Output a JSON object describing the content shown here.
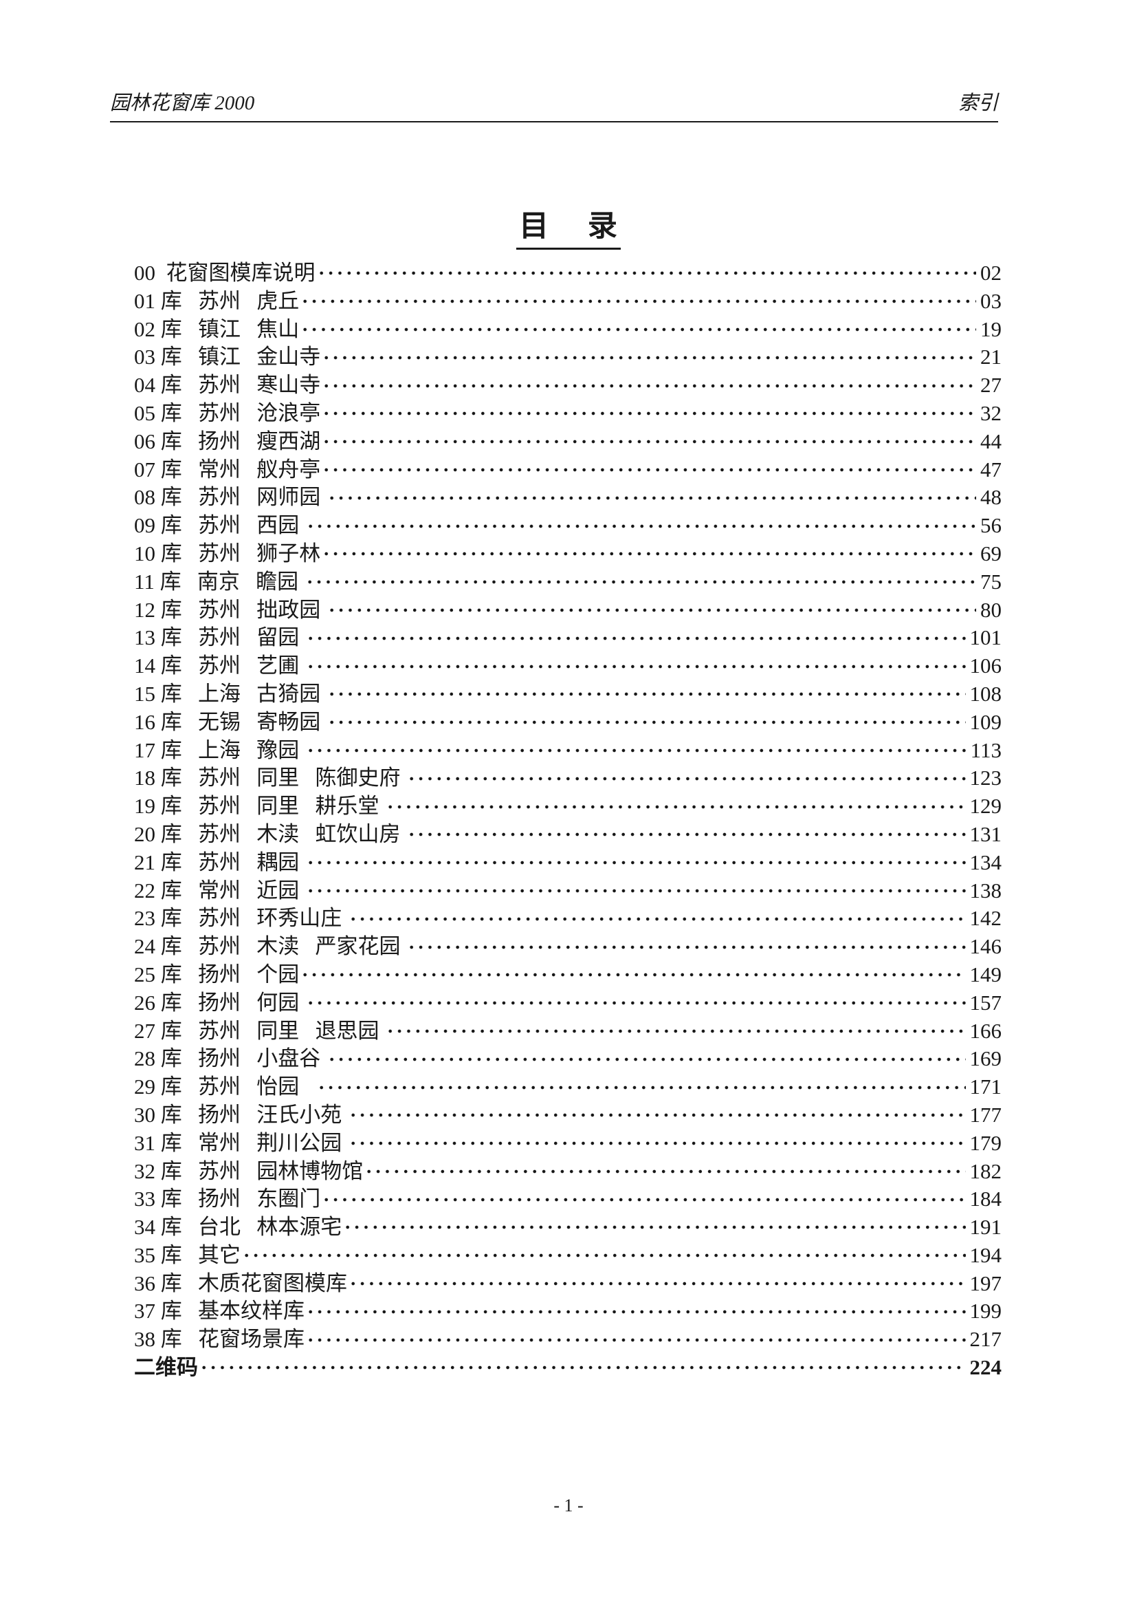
{
  "header": {
    "left": "园林花窗库 2000",
    "right": "索引"
  },
  "title": "目　 录",
  "toc": [
    {
      "label": "00  花窗图模库说明",
      "page": "02",
      "bold": false
    },
    {
      "label": "01 库   苏州   虎丘",
      "page": "03",
      "bold": false
    },
    {
      "label": "02 库   镇江   焦山",
      "page": "19",
      "bold": false
    },
    {
      "label": "03 库   镇江   金山寺",
      "page": "21",
      "bold": false
    },
    {
      "label": "04 库   苏州   寒山寺",
      "page": "27",
      "bold": false
    },
    {
      "label": "05 库   苏州   沧浪亭",
      "page": "32",
      "bold": false
    },
    {
      "label": "06 库   扬州   瘦西湖",
      "page": "44",
      "bold": false
    },
    {
      "label": "07 库   常州   舣舟亭",
      "page": "47",
      "bold": false
    },
    {
      "label": "08 库   苏州   网师园 ",
      "page": "48",
      "bold": false
    },
    {
      "label": "09 库   苏州   西园 ",
      "page": "56",
      "bold": false
    },
    {
      "label": "10 库   苏州   狮子林",
      "page": "69",
      "bold": false
    },
    {
      "label": "11 库   南京   瞻园 ",
      "page": "75",
      "bold": false
    },
    {
      "label": "12 库   苏州   拙政园 ",
      "page": "80",
      "bold": false
    },
    {
      "label": "13 库   苏州   留园 ",
      "page": "101",
      "bold": false
    },
    {
      "label": "14 库   苏州   艺圃 ",
      "page": "106",
      "bold": false
    },
    {
      "label": "15 库   上海   古猗园 ",
      "page": "108",
      "bold": false
    },
    {
      "label": "16 库   无锡   寄畅园 ",
      "page": "109",
      "bold": false
    },
    {
      "label": "17 库   上海   豫园 ",
      "page": "113",
      "bold": false
    },
    {
      "label": "18 库   苏州   同里   陈御史府 ",
      "page": "123",
      "bold": false
    },
    {
      "label": "19 库   苏州   同里   耕乐堂 ",
      "page": "129",
      "bold": false
    },
    {
      "label": "20 库   苏州   木渎   虹饮山房 ",
      "page": "131",
      "bold": false
    },
    {
      "label": "21 库   苏州   耦园 ",
      "page": "134",
      "bold": false
    },
    {
      "label": "22 库   常州   近园 ",
      "page": "138",
      "bold": false
    },
    {
      "label": "23 库   苏州   环秀山庄 ",
      "page": "142",
      "bold": false
    },
    {
      "label": "24 库   苏州   木渎   严家花园 ",
      "page": "146",
      "bold": false
    },
    {
      "label": "25 库   扬州   个园",
      "page": "149",
      "bold": false
    },
    {
      "label": "26 库   扬州   何园 ",
      "page": "157",
      "bold": false
    },
    {
      "label": "27 库   苏州   同里   退思园 ",
      "page": "166",
      "bold": false
    },
    {
      "label": "28 库   扬州   小盘谷 ",
      "page": "169",
      "bold": false
    },
    {
      "label": "29 库   苏州   怡园   ",
      "page": "171",
      "bold": false
    },
    {
      "label": "30 库   扬州   汪氏小苑 ",
      "page": "177",
      "bold": false
    },
    {
      "label": "31 库   常州   荆川公园 ",
      "page": "179",
      "bold": false
    },
    {
      "label": "32 库   苏州   园林博物馆",
      "page": "182",
      "bold": false
    },
    {
      "label": "33 库   扬州   东圈门",
      "page": "184",
      "bold": false
    },
    {
      "label": "34 库   台北   林本源宅",
      "page": "191",
      "bold": false
    },
    {
      "label": "35 库   其它",
      "page": "194",
      "bold": false
    },
    {
      "label": "36 库   木质花窗图模库",
      "page": "197",
      "bold": false
    },
    {
      "label": "37 库   基本纹样库",
      "page": "199",
      "bold": false
    },
    {
      "label": "38 库   花窗场景库",
      "page": "217",
      "bold": false
    },
    {
      "label": "二维码",
      "page": "224",
      "bold": true
    }
  ],
  "footer": {
    "page_label": "- 1 -"
  }
}
